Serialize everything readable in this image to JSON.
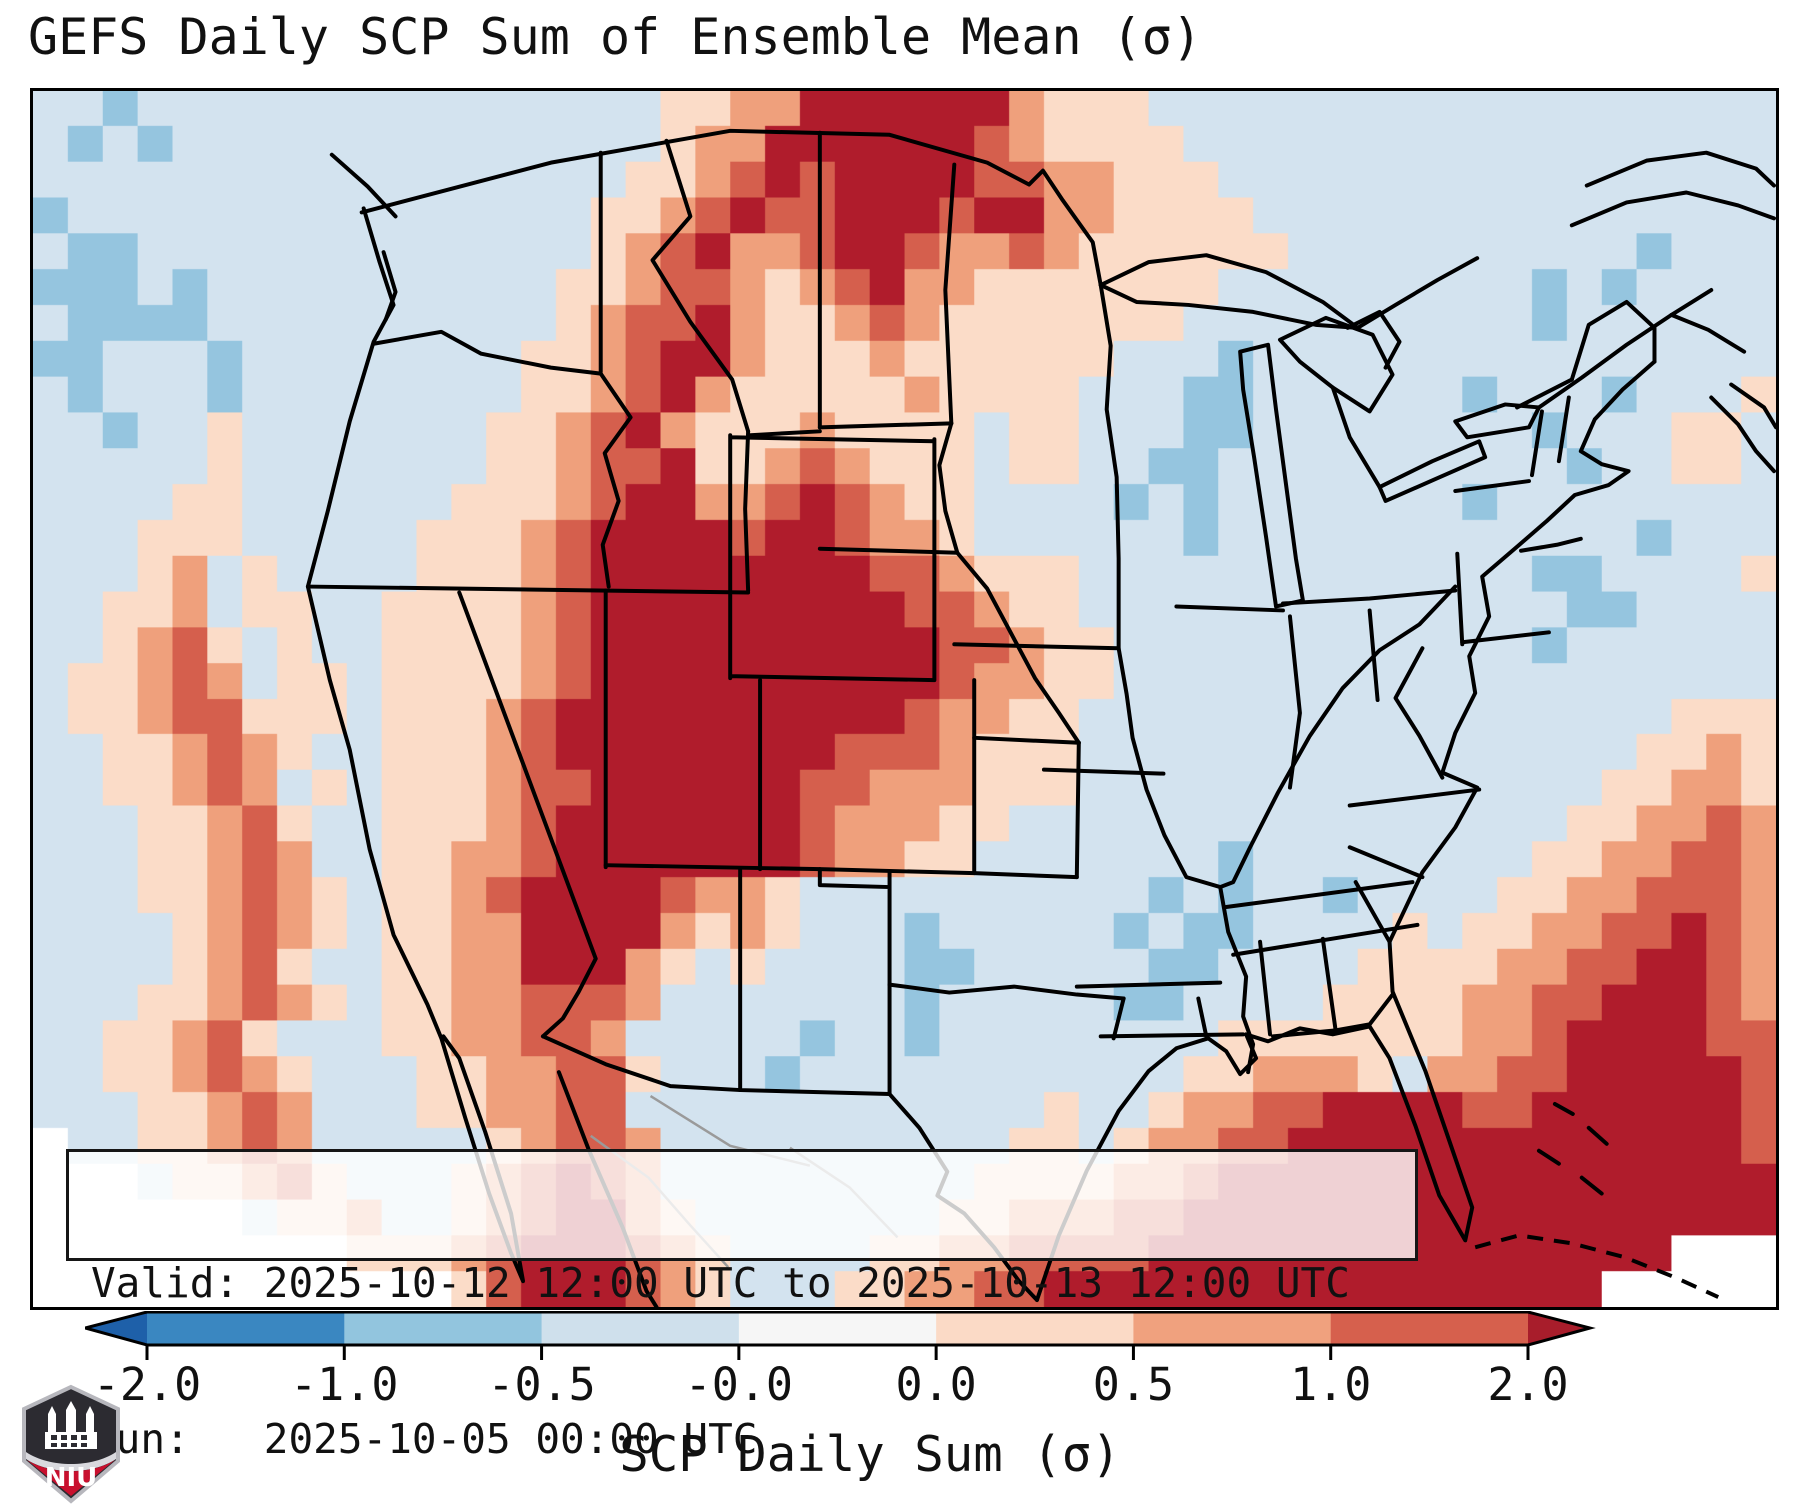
{
  "title": "GEFS Daily SCP Sum of Ensemble Mean (σ)",
  "annotation": {
    "valid_line": "Valid: 2025-10-12 12:00 UTC to 2025-10-13 12:00 UTC",
    "run_line": "Run:   2025-10-05 00:00 UTC"
  },
  "colorbar": {
    "axis_label": "SCP Daily Sum (σ)",
    "tick_labels": [
      "-2.0",
      "-1.0",
      "-0.5",
      "-0.0",
      "0.0",
      "0.5",
      "1.0",
      "2.0"
    ],
    "segment_colors": [
      "#3a87c1",
      "#92c5de",
      "#cfe0ec",
      "#f6f6f6",
      "#fbdac6",
      "#f0a17e",
      "#d6604d"
    ],
    "under_arrow_color": "#1e60a9",
    "over_arrow_color": "#a81d2b"
  },
  "logo": {
    "text": "NIU",
    "red": "#c8102e",
    "dark": "#2c2b31"
  },
  "chart_data": {
    "type": "heatmap",
    "title": "GEFS Daily SCP Sum of Ensemble Mean (σ)",
    "colorbar_label": "SCP Daily Sum (σ)",
    "levels_sigma": [
      -2.0,
      -1.0,
      -0.5,
      -0.0,
      0.0,
      0.5,
      1.0,
      2.0
    ],
    "valid": "2025-10-12 12:00 UTC to 2025-10-13 12:00 UTC",
    "run": "2025-10-05 00:00 UTC",
    "legend_note": "grid chars: . = -0.5..0 pale blue, b = -1..-0.5 blue, B = -2..-1 blue, w = ~0 white, 1 = 0..0.5, 2 = 0.5..1, 3 = 1..2, 4 = >2 sigma, W = outside domain",
    "grid": {
      "cols": 50,
      "rows_count": 34,
      "palette": {
        ".": "#d3e3ef",
        "b": "#95c5df",
        "B": "#4f9bcb",
        "w": "#f7f6f4",
        "1": "#fbdcc8",
        "2": "#efa07c",
        "3": "#d55f4d",
        "4": "#b01c2c",
        "W": "#ffffff"
      },
      "rows": [
        "..b...............11224444442111..................",
        ".b.b..............122444444321111.................",
        ".................11234344443322111................",
        "b...............1123433444344221111...............",
        ".bb.............12342234432232111111..........b...",
        "bbb.b..........1123321234221111111.........b.b....",
        ".bbbb..........123342112321111111..........b......",
        "bb...b........11234421112111111...b...............",
        ".b...b........1123421111121111...bb......b...b...1",
        "..b..1.......11234211121111.11...bb........b...11.",
        ".....1.......11233411232111.11..bb..........b..11.",
        "....11......111234422343211....b.b.......b........",
        "...111.....1112344443443221......b............b...",
        "...12.1....1112344444444332111.............bb....1",
        "..112.11..11112344444444433211..............bb....",
        "..1231.1..111123444444444433211............b......",
        ".11232.11.111123444444444432211...................",
        ".11233111.11123444444444432211.................111",
        "..112321..11123444444443332111................1121",
        "..11232.1.11123344444433222111...............11221",
        "...11231..111234444444322211................112232",
        "...11232..11223444444432211.......b........1122332",
        "...112321.112344443221..........b.b..b....11223332",
        "....12321.112244442121...b.....b.bb....1.112233432",
        "....1231..112244421.1....bb.....bb....111122334432",
        "...112321.11223332.......b.....bb....1111223344432",
        "..11231...1122332.....b..b........1111111223444433",
        "..112321...1122331...b...........112221.2233444443",
        "...11232...112233............1..122334444334444443",
        "W..11232.....12332..........11.1223344444444444443",
        "WWW.11231...123432.........11112234444444444444444",
        "WWWWWW.112..1234421.......112223344444444444444444",
        "WWWWWWWWW11123444321....11223333444444444444444WWW",
        "WWWWWWWWWWWW13444321...1122334444444444444444WWWWW"
      ]
    }
  }
}
